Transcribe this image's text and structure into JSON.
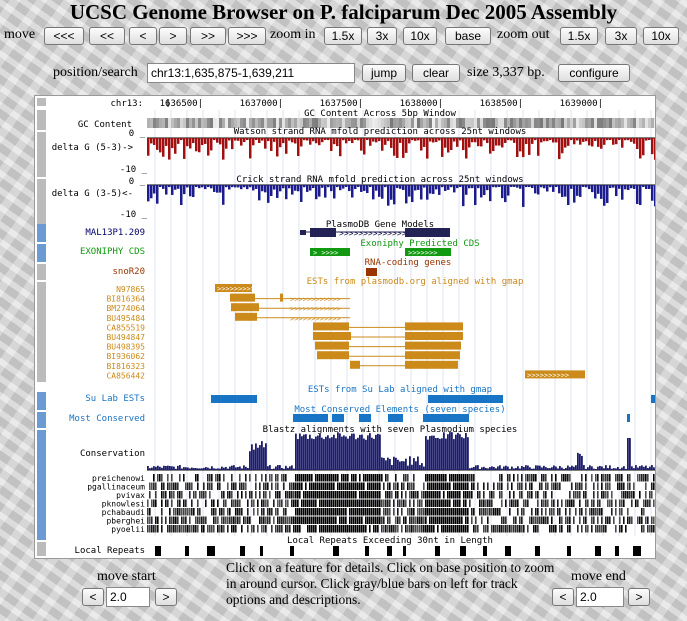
{
  "title": "UCSC Genome Browser on P. falciparum Dec 2005 Assembly",
  "nav": {
    "move_label": "move",
    "move_buttons": [
      "<<<",
      "<<",
      "<",
      ">",
      ">>",
      ">>>"
    ],
    "zoom_in_label": "zoom in",
    "zoom_in_buttons": [
      "1.5x",
      "3x",
      "10x",
      "base"
    ],
    "zoom_out_label": "zoom out",
    "zoom_out_buttons": [
      "1.5x",
      "3x",
      "10x"
    ]
  },
  "search": {
    "label": "position/search",
    "value": "chr13:1,635,875-1,639,211",
    "jump": "jump",
    "clear": "clear",
    "size_text": "size 3,337 bp.",
    "configure": "configure"
  },
  "ruler": {
    "chrom": "chr13:",
    "ticks": [
      "1636500|",
      "1637000|",
      "1637500|",
      "1638000|",
      "1638500|",
      "1639000|"
    ]
  },
  "tracks": {
    "gc_title": "GC Content Across 5bp Window",
    "gc_label": "GC Content",
    "watson_title": "Watson strand RNA mfold prediction across 25nt windows",
    "watson_label": "delta G (5-3)->",
    "crick_title": "Crick strand RNA mfold prediction across 25nt windows",
    "crick_label": "delta G (3-5)<-",
    "axis_zero": "0 _",
    "axis_neg": "-10 _",
    "plasmodb_title": "PlasmoDB Gene Models",
    "plasmodb_item": "MAL13P1.209",
    "exoniphy_title": "Exoniphy Predicted CDS",
    "exoniphy_label": "EXONIPHY CDS",
    "rna_title": "RNA-coding genes",
    "rna_item": "snoR20",
    "est_title": "ESTs from plasmodb.org aligned with gmap",
    "est_items": [
      "N97865",
      "BI816364",
      "BM274064",
      "BU495484",
      "CA855519",
      "BU494847",
      "BU498395",
      "BI936062",
      "BI816323",
      "CA856442"
    ],
    "sulab_title": "ESTs from Su Lab aligned with gmap",
    "sulab_label": "Su Lab ESTs",
    "conserved_title": "Most Conserved Elements (seven species)",
    "conserved_label": "Most Conserved",
    "blastz_title": "Blastz alignments with seven Plasmodium species",
    "conservation_label": "Conservation",
    "species": [
      "preichenowi",
      "pgallinaceum",
      "pvivax",
      "pknowlesi",
      "pchabaudi",
      "pberghei",
      "pyoelii"
    ],
    "repeats_title": "Local Repeats Exceeding 30nt in Length",
    "repeats_label": "Local Repeats"
  },
  "colors": {
    "watson": "#a01010",
    "crick": "#1c1c8c",
    "exoniphy": "#119911",
    "rna": "#993300",
    "est": "#cc8a1a",
    "sulab": "#1874c4",
    "conservation": "#1c1c6c"
  },
  "footer": {
    "move_start": "move start",
    "move_end": "move end",
    "start_value": "2.0",
    "end_value": "2.0",
    "left_arrow": "<",
    "right_arrow": ">",
    "help": "Click on a feature for details. Click on base position to zoom in around cursor. Click gray/blue bars on left for track options and descriptions."
  }
}
